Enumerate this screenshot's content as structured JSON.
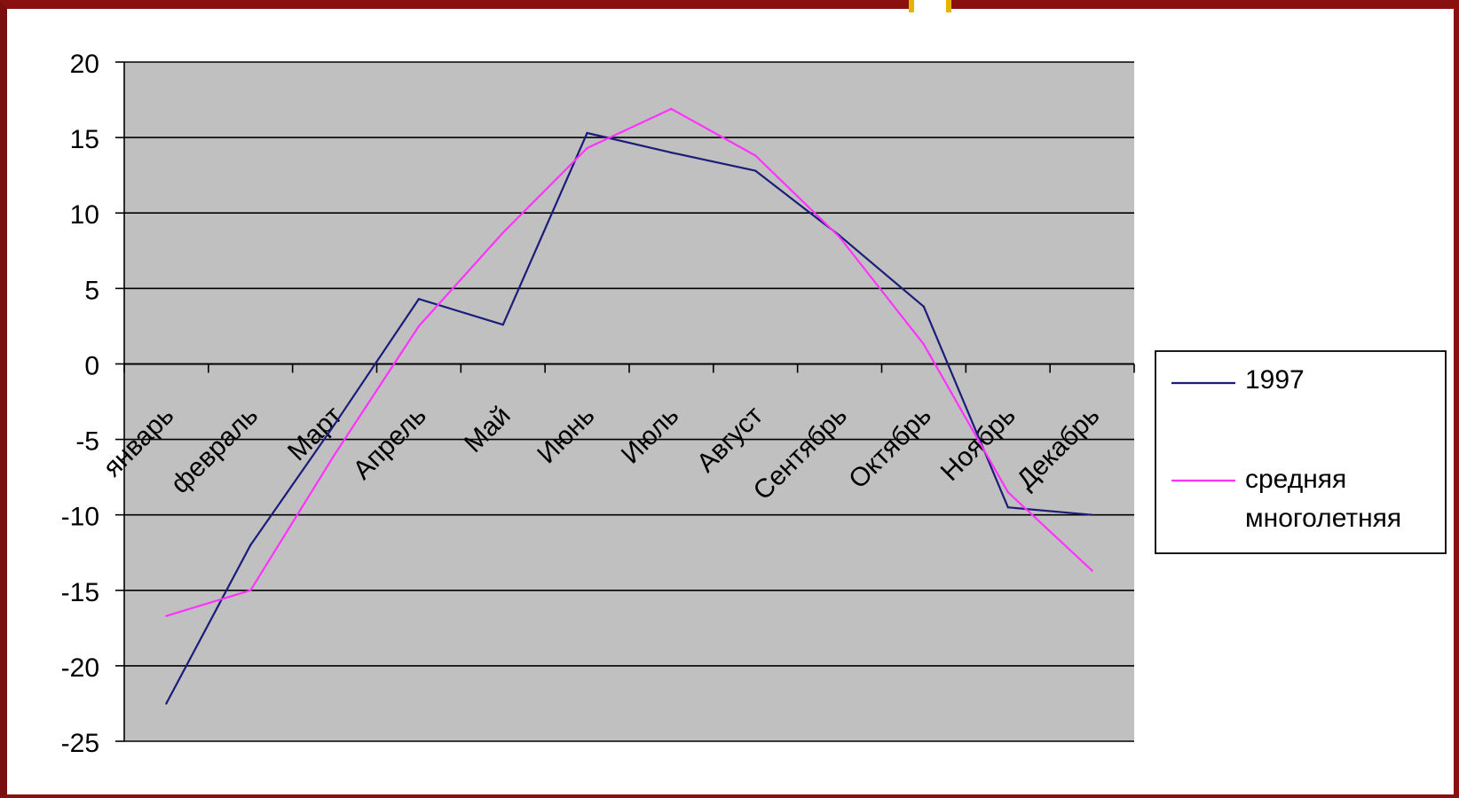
{
  "chart_data": {
    "type": "line",
    "categories": [
      "январь",
      "февраль",
      "Март",
      "Апрель",
      "Май",
      "Июнь",
      "Июль",
      "Август",
      "Сентябрь",
      "Октябрь",
      "Ноябрь",
      "Декабрь"
    ],
    "series": [
      {
        "name": "1997",
        "color": "#1c1c7a",
        "values": [
          -22.5,
          -12,
          -4,
          4.3,
          2.6,
          15.3,
          14,
          12.8,
          8.5,
          3.8,
          -9.5,
          -10
        ]
      },
      {
        "name": "средняя многолетняя",
        "color": "#ff33ff",
        "values": [
          -16.7,
          -15,
          -6,
          2.5,
          8.7,
          14.3,
          16.9,
          13.8,
          8.4,
          1.3,
          -8.5,
          -13.7
        ]
      }
    ],
    "title": "",
    "xlabel": "",
    "ylabel": "",
    "ylim": [
      -25,
      20
    ],
    "yticks": [
      "20",
      "15",
      "10",
      "5",
      "0",
      "-5",
      "-10",
      "-15",
      "-20",
      "-25"
    ],
    "grid": true,
    "plot_background": "#c0c0c0",
    "legend_position": "right",
    "legend": [
      "1997",
      "средняя многолетняя"
    ]
  }
}
